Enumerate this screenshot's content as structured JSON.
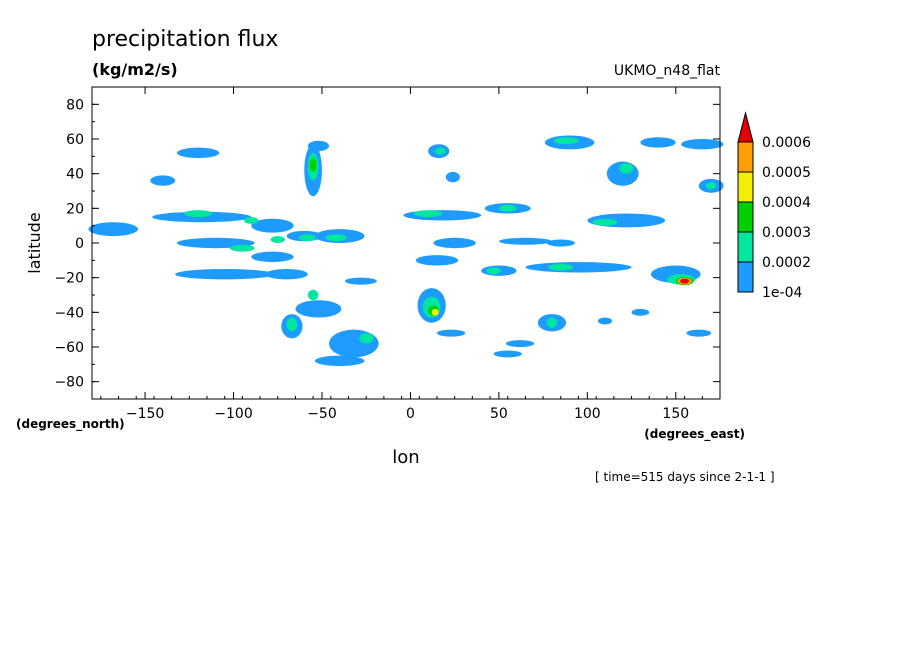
{
  "chart_data": {
    "type": "heatmap",
    "title": "precipitation flux",
    "units": "(kg/m2/s)",
    "model": "UKMO_n48_flat",
    "xlabel": "lon",
    "ylabel": "latitude",
    "x_units": "(degrees_east)",
    "y_units": "(degrees_north)",
    "xlim": [
      -180,
      175
    ],
    "ylim": [
      -90,
      90
    ],
    "x_ticks": [
      -150,
      -100,
      -50,
      0,
      50,
      100,
      150
    ],
    "y_ticks": [
      80,
      60,
      40,
      20,
      0,
      -20,
      -40,
      -60,
      -80
    ],
    "time_note": "[ time=515 days since 2-1-1 ]",
    "levels": [
      {
        "label": "1e-04",
        "value": 0.0001,
        "color": "#1e9bff"
      },
      {
        "label": "0.0002",
        "value": 0.0002,
        "color": "#00e6a0"
      },
      {
        "label": "0.0003",
        "value": 0.0003,
        "color": "#00d000"
      },
      {
        "label": "0.0004",
        "value": 0.0004,
        "color": "#f0f000"
      },
      {
        "label": "0.0005",
        "value": 0.0005,
        "color": "#ffa000"
      },
      {
        "label": "0.0006",
        "value": 0.0006,
        "color": "#e60000"
      }
    ],
    "features": [
      {
        "lon": -168,
        "lat": 8,
        "w": 14,
        "h": 4,
        "level": 0
      },
      {
        "lon": -140,
        "lat": 36,
        "w": 7,
        "h": 3,
        "level": 0
      },
      {
        "lon": -120,
        "lat": 52,
        "w": 12,
        "h": 3,
        "level": 0
      },
      {
        "lon": -118,
        "lat": 15,
        "w": 28,
        "h": 3,
        "level": 0
      },
      {
        "lon": -120,
        "lat": 17,
        "w": 8,
        "h": 2,
        "level": 1
      },
      {
        "lon": -110,
        "lat": 0,
        "w": 22,
        "h": 3,
        "level": 0
      },
      {
        "lon": -95,
        "lat": -3,
        "w": 7,
        "h": 2,
        "level": 1
      },
      {
        "lon": -105,
        "lat": -18,
        "w": 28,
        "h": 3,
        "level": 0
      },
      {
        "lon": -78,
        "lat": 10,
        "w": 12,
        "h": 4,
        "level": 0
      },
      {
        "lon": -78,
        "lat": -8,
        "w": 12,
        "h": 3,
        "level": 0
      },
      {
        "lon": -70,
        "lat": -18,
        "w": 12,
        "h": 3,
        "level": 0
      },
      {
        "lon": -67,
        "lat": -48,
        "w": 6,
        "h": 7,
        "level": 0
      },
      {
        "lon": -67,
        "lat": -47,
        "w": 3,
        "h": 4,
        "level": 1
      },
      {
        "lon": -55,
        "lat": 42,
        "w": 5,
        "h": 15,
        "level": 0
      },
      {
        "lon": -55,
        "lat": 44,
        "w": 3,
        "h": 8,
        "level": 1
      },
      {
        "lon": -55,
        "lat": 45,
        "w": 2,
        "h": 4,
        "level": 2
      },
      {
        "lon": -52,
        "lat": 56,
        "w": 6,
        "h": 3,
        "level": 0
      },
      {
        "lon": -60,
        "lat": 4,
        "w": 10,
        "h": 3,
        "level": 0
      },
      {
        "lon": -58,
        "lat": 3,
        "w": 5,
        "h": 2,
        "level": 1
      },
      {
        "lon": -40,
        "lat": 4,
        "w": 14,
        "h": 4,
        "level": 0
      },
      {
        "lon": -42,
        "lat": 3,
        "w": 6,
        "h": 2,
        "level": 1
      },
      {
        "lon": -28,
        "lat": -22,
        "w": 9,
        "h": 2,
        "level": 0
      },
      {
        "lon": -52,
        "lat": -38,
        "w": 13,
        "h": 5,
        "level": 0
      },
      {
        "lon": -55,
        "lat": -30,
        "w": 3,
        "h": 3,
        "level": 1
      },
      {
        "lon": -32,
        "lat": -58,
        "w": 14,
        "h": 8,
        "level": 0
      },
      {
        "lon": -25,
        "lat": -55,
        "w": 4,
        "h": 3,
        "level": 1
      },
      {
        "lon": -40,
        "lat": -68,
        "w": 14,
        "h": 3,
        "level": 0
      },
      {
        "lon": 16,
        "lat": 53,
        "w": 6,
        "h": 4,
        "level": 0
      },
      {
        "lon": 17,
        "lat": 53,
        "w": 3,
        "h": 2,
        "level": 1
      },
      {
        "lon": 24,
        "lat": 38,
        "w": 4,
        "h": 3,
        "level": 0
      },
      {
        "lon": 18,
        "lat": 16,
        "w": 22,
        "h": 3,
        "level": 0
      },
      {
        "lon": 10,
        "lat": 17,
        "w": 8,
        "h": 2,
        "level": 1
      },
      {
        "lon": 55,
        "lat": 20,
        "w": 13,
        "h": 3,
        "level": 0
      },
      {
        "lon": 55,
        "lat": 20,
        "w": 5,
        "h": 2,
        "level": 1
      },
      {
        "lon": 25,
        "lat": 0,
        "w": 12,
        "h": 3,
        "level": 0
      },
      {
        "lon": 15,
        "lat": -10,
        "w": 12,
        "h": 3,
        "level": 0
      },
      {
        "lon": 12,
        "lat": -36,
        "w": 8,
        "h": 10,
        "level": 0
      },
      {
        "lon": 12,
        "lat": -37,
        "w": 5,
        "h": 6,
        "level": 1
      },
      {
        "lon": 13,
        "lat": -39,
        "w": 3,
        "h": 3,
        "level": 2
      },
      {
        "lon": 14,
        "lat": -40,
        "w": 2,
        "h": 2,
        "level": 3
      },
      {
        "lon": 23,
        "lat": -52,
        "w": 8,
        "h": 2,
        "level": 0
      },
      {
        "lon": 50,
        "lat": -16,
        "w": 10,
        "h": 3,
        "level": 0
      },
      {
        "lon": 47,
        "lat": -16,
        "w": 4,
        "h": 2,
        "level": 1
      },
      {
        "lon": 95,
        "lat": -14,
        "w": 30,
        "h": 3,
        "level": 0
      },
      {
        "lon": 85,
        "lat": -14,
        "w": 7,
        "h": 2,
        "level": 1
      },
      {
        "lon": 80,
        "lat": -46,
        "w": 8,
        "h": 5,
        "level": 0
      },
      {
        "lon": 80,
        "lat": -46,
        "w": 3,
        "h": 3,
        "level": 1
      },
      {
        "lon": 55,
        "lat": -64,
        "w": 8,
        "h": 2,
        "level": 0
      },
      {
        "lon": 62,
        "lat": -58,
        "w": 8,
        "h": 2,
        "level": 0
      },
      {
        "lon": 65,
        "lat": 1,
        "w": 15,
        "h": 2,
        "level": 0
      },
      {
        "lon": 85,
        "lat": 0,
        "w": 8,
        "h": 2,
        "level": 0
      },
      {
        "lon": 90,
        "lat": 58,
        "w": 14,
        "h": 4,
        "level": 0
      },
      {
        "lon": 88,
        "lat": 59,
        "w": 7,
        "h": 2,
        "level": 1
      },
      {
        "lon": 120,
        "lat": 40,
        "w": 9,
        "h": 7,
        "level": 0
      },
      {
        "lon": 122,
        "lat": 43,
        "w": 4,
        "h": 3,
        "level": 1
      },
      {
        "lon": 122,
        "lat": 13,
        "w": 22,
        "h": 4,
        "level": 0
      },
      {
        "lon": 110,
        "lat": 12,
        "w": 7,
        "h": 2,
        "level": 1
      },
      {
        "lon": 165,
        "lat": 57,
        "w": 12,
        "h": 3,
        "level": 0
      },
      {
        "lon": 140,
        "lat": 58,
        "w": 10,
        "h": 3,
        "level": 0
      },
      {
        "lon": 170,
        "lat": 33,
        "w": 7,
        "h": 4,
        "level": 0
      },
      {
        "lon": 170,
        "lat": 33,
        "w": 3,
        "h": 2,
        "level": 1
      },
      {
        "lon": 150,
        "lat": -18,
        "w": 14,
        "h": 5,
        "level": 0
      },
      {
        "lon": 153,
        "lat": -21,
        "w": 8,
        "h": 3,
        "level": 1
      },
      {
        "lon": 155,
        "lat": -22,
        "w": 5,
        "h": 2.4,
        "level": 2
      },
      {
        "lon": 155,
        "lat": -22,
        "w": 4,
        "h": 2,
        "level": 4
      },
      {
        "lon": 155,
        "lat": -22,
        "w": 2.5,
        "h": 1.4,
        "level": 5
      },
      {
        "lon": 163,
        "lat": -52,
        "w": 7,
        "h": 2,
        "level": 0
      },
      {
        "lon": 130,
        "lat": -40,
        "w": 5,
        "h": 2,
        "level": 0
      },
      {
        "lon": 110,
        "lat": -45,
        "w": 4,
        "h": 2,
        "level": 0
      },
      {
        "lon": -90,
        "lat": 13,
        "w": 4,
        "h": 2,
        "level": 1
      },
      {
        "lon": -75,
        "lat": 2,
        "w": 4,
        "h": 2,
        "level": 1
      }
    ]
  }
}
